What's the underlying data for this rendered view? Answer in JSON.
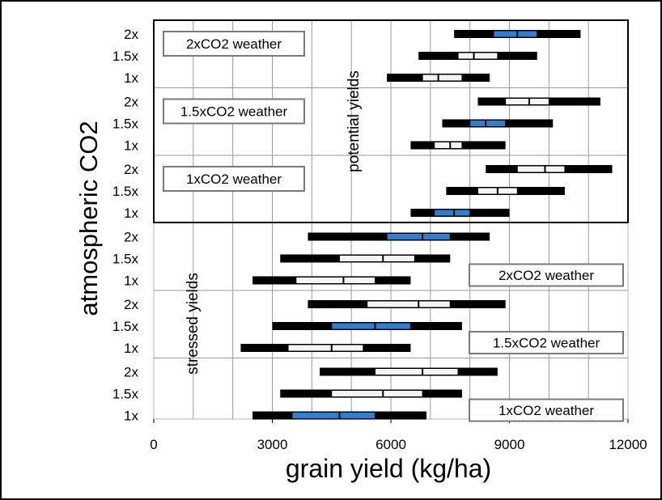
{
  "chart_data": {
    "type": "box",
    "orientation": "horizontal",
    "xlabel": "grain yield (kg/ha)",
    "ylabel": "atmospheric CO2",
    "xlim": [
      0,
      12000
    ],
    "xticks": [
      0,
      3000,
      6000,
      9000,
      12000
    ],
    "grid": true,
    "colors": {
      "highlight": "#2f7fd0",
      "box": "#f4f4f4",
      "whisker": "#000000",
      "grid": "#9a9a9a"
    },
    "section_labels": {
      "potential": "potential yields",
      "stressed": "stressed yields"
    },
    "groups": [
      {
        "section": "potential",
        "weather": "2xCO2 weather",
        "rows": [
          {
            "co2": "2x",
            "min": 7600,
            "q1": 8600,
            "median": 9200,
            "q3": 9700,
            "max": 10800,
            "highlight": true
          },
          {
            "co2": "1.5x",
            "min": 6700,
            "q1": 7700,
            "median": 8100,
            "q3": 8700,
            "max": 9700,
            "highlight": false
          },
          {
            "co2": "1x",
            "min": 5900,
            "q1": 6800,
            "median": 7200,
            "q3": 7800,
            "max": 8500,
            "highlight": false
          }
        ]
      },
      {
        "section": "potential",
        "weather": "1.5xCO2 weather",
        "rows": [
          {
            "co2": "2x",
            "min": 8200,
            "q1": 8900,
            "median": 9500,
            "q3": 10000,
            "max": 11300,
            "highlight": false
          },
          {
            "co2": "1.5x",
            "min": 7300,
            "q1": 8000,
            "median": 8400,
            "q3": 8900,
            "max": 10100,
            "highlight": true
          },
          {
            "co2": "1x",
            "min": 6500,
            "q1": 7100,
            "median": 7500,
            "q3": 7800,
            "max": 8900,
            "highlight": false
          }
        ]
      },
      {
        "section": "potential",
        "weather": "1xCO2 weather",
        "rows": [
          {
            "co2": "2x",
            "min": 8400,
            "q1": 9200,
            "median": 9900,
            "q3": 10400,
            "max": 11600,
            "highlight": false
          },
          {
            "co2": "1.5x",
            "min": 7400,
            "q1": 8200,
            "median": 8700,
            "q3": 9200,
            "max": 10400,
            "highlight": false
          },
          {
            "co2": "1x",
            "min": 6500,
            "q1": 7100,
            "median": 7600,
            "q3": 8000,
            "max": 9000,
            "highlight": true
          }
        ]
      },
      {
        "section": "stressed",
        "weather": "2xCO2 weather",
        "rows": [
          {
            "co2": "2x",
            "min": 3900,
            "q1": 5900,
            "median": 6800,
            "q3": 7500,
            "max": 8500,
            "highlight": true
          },
          {
            "co2": "1.5x",
            "min": 3200,
            "q1": 4700,
            "median": 5800,
            "q3": 6600,
            "max": 7500,
            "highlight": false
          },
          {
            "co2": "1x",
            "min": 2500,
            "q1": 3600,
            "median": 4800,
            "q3": 5600,
            "max": 6500,
            "highlight": false
          }
        ]
      },
      {
        "section": "stressed",
        "weather": "1.5xCO2 weather",
        "rows": [
          {
            "co2": "2x",
            "min": 3900,
            "q1": 5400,
            "median": 6700,
            "q3": 7500,
            "max": 8900,
            "highlight": false
          },
          {
            "co2": "1.5x",
            "min": 3000,
            "q1": 4500,
            "median": 5600,
            "q3": 6500,
            "max": 7800,
            "highlight": true
          },
          {
            "co2": "1x",
            "min": 2200,
            "q1": 3400,
            "median": 4500,
            "q3": 5300,
            "max": 6500,
            "highlight": false
          }
        ]
      },
      {
        "section": "stressed",
        "weather": "1xCO2 weather",
        "rows": [
          {
            "co2": "2x",
            "min": 4200,
            "q1": 5600,
            "median": 6800,
            "q3": 7700,
            "max": 8700,
            "highlight": false
          },
          {
            "co2": "1.5x",
            "min": 3200,
            "q1": 4500,
            "median": 5800,
            "q3": 6800,
            "max": 7800,
            "highlight": false
          },
          {
            "co2": "1x",
            "min": 2500,
            "q1": 3500,
            "median": 4700,
            "q3": 5600,
            "max": 6900,
            "highlight": true
          }
        ]
      }
    ]
  }
}
